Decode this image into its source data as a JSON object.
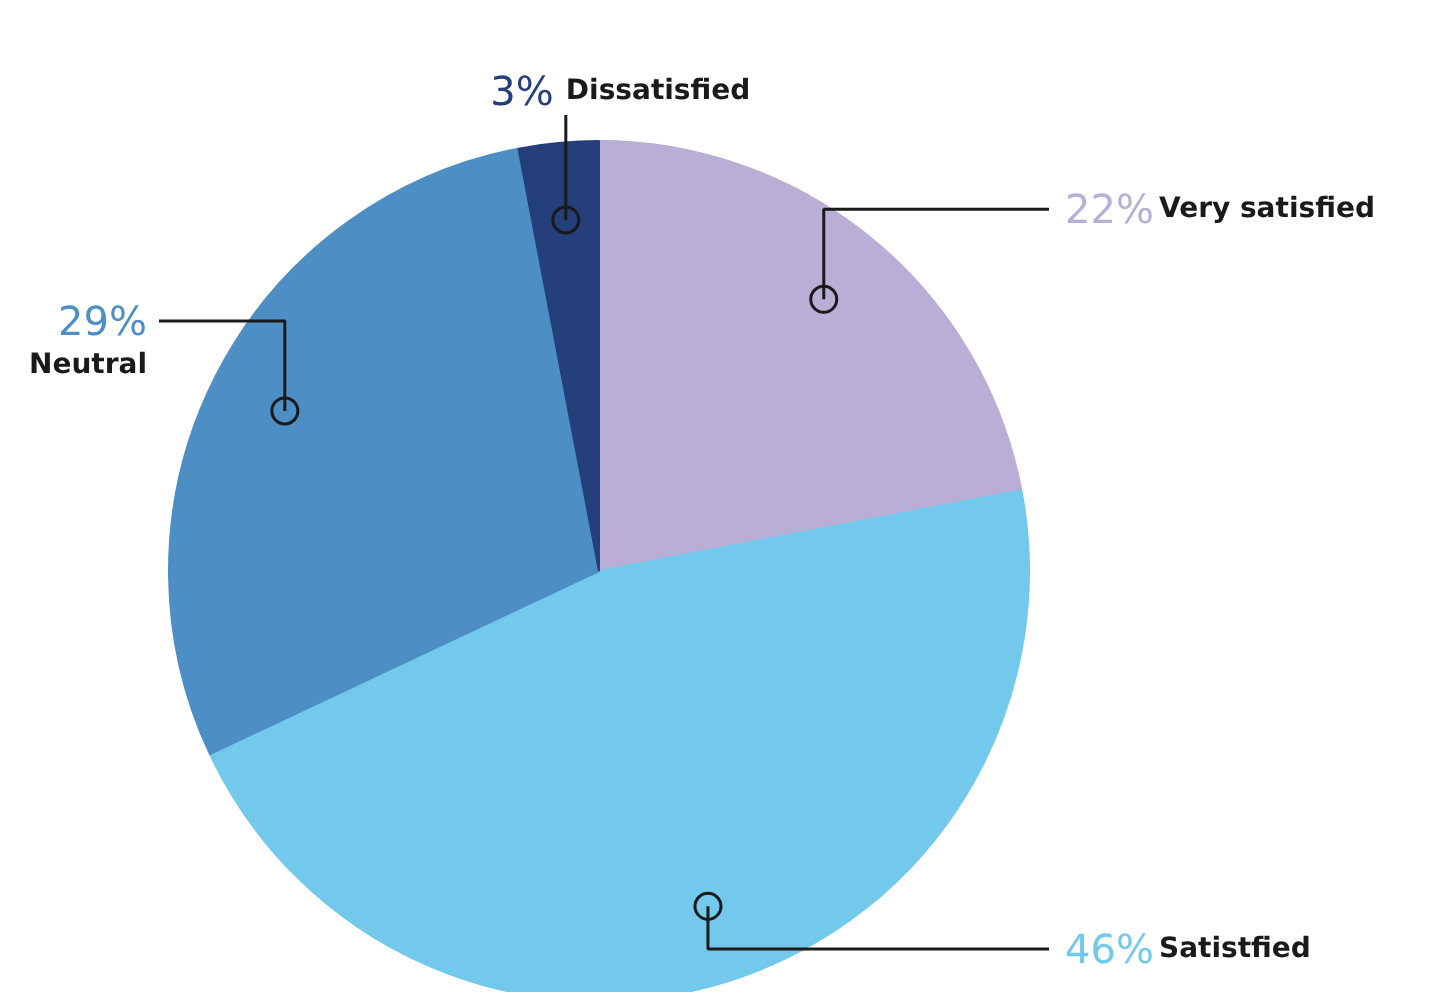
{
  "chart_data": {
    "type": "pie",
    "categories": [
      "Very satisfied",
      "Satistfied",
      "Neutral",
      "Dissatisfied"
    ],
    "values": [
      22,
      46,
      29,
      3
    ],
    "colors": [
      "#b8aed6",
      "#72c9eb",
      "#4d8ec4",
      "#243f7a"
    ],
    "value_labels": [
      "22%",
      "46%",
      "29%",
      "3%"
    ]
  }
}
